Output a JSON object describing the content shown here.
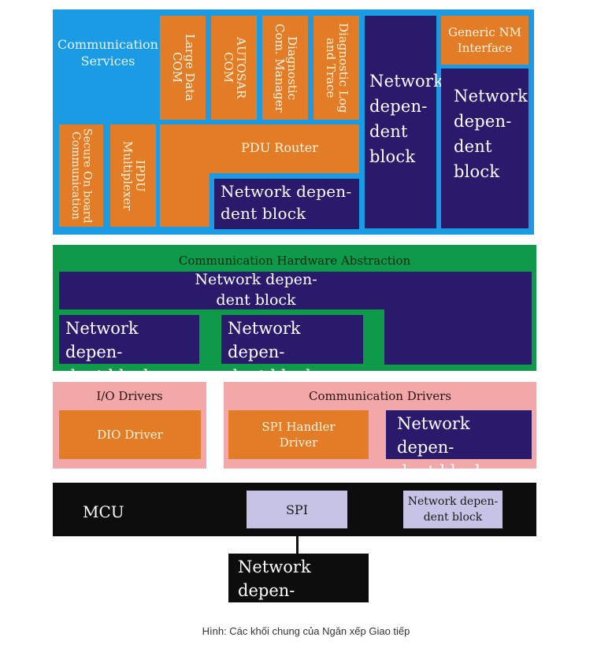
{
  "comm_services": {
    "title": "Communication Services",
    "large_data_com": "Large Data\nCOM",
    "autosar_com": "AUTOSAR\nCOM",
    "diag_com_manager": "Diagnostic\nCom. Manager",
    "diag_log_trace": "Diagnostic Log\nand Trace",
    "secure_onboard": "Secure On board\nCommunication",
    "ipdu_multiplexer": "IPDU\nMultiplexer",
    "pdu_router": "PDU Router",
    "ndb_under_router": "Network depen-\ndent block",
    "ndb_tall_left": "Network\ndepen-\ndent\nblock",
    "generic_nm": "Generic NM\nInterface",
    "ndb_tall_right": "Network\ndepen-\ndent\nblock"
  },
  "hw_abstraction": {
    "title": "Communication Hardware Abstraction",
    "ndb_top": "Network depen-\ndent block",
    "ndb_left": "Network depen-\ndent block",
    "ndb_middle": "Network depen-\ndent block"
  },
  "io_drivers": {
    "title": "I/O Drivers",
    "dio_driver": "DIO Driver"
  },
  "comm_drivers": {
    "title": "Communication Drivers",
    "spi_handler": "SPI Handler\nDriver",
    "ndb": "Network depen-\ndent block"
  },
  "mcu": {
    "title": "MCU",
    "spi": "SPI",
    "ndb": "Network depen-\ndent block"
  },
  "external_ndb": "Network depen-\ndent block",
  "caption": "Hình: Các khối chung của Ngăn xếp Giao tiếp",
  "colors": {
    "comm_services_bg": "#1b9be4",
    "orange": "#e37c26",
    "navy": "#2a1a6b",
    "hw_abstraction_bg": "#0e9a48",
    "drivers_bg": "#f2a7a8",
    "mcu_bg": "#0d0d0d",
    "lavender": "#c7c3e6"
  }
}
